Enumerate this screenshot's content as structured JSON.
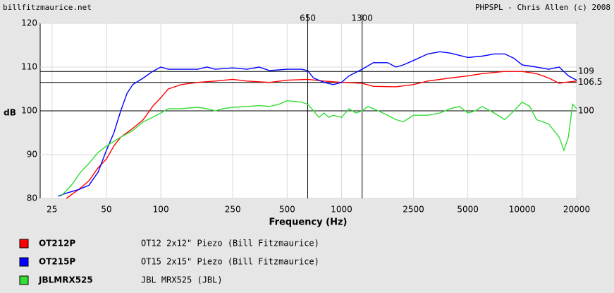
{
  "chart_data": {
    "type": "line",
    "site": "billfitzmaurice.net",
    "credit": "PHPSPL - Chris Allen (c) 2008",
    "xlabel": "Frequency (Hz)",
    "ylabel": "dB",
    "log_x": true,
    "grid": true,
    "xlim": [
      21.5,
      20000
    ],
    "ylim": [
      80,
      120
    ],
    "xticks": [
      25,
      50,
      100,
      250,
      500,
      1000,
      2500,
      5000,
      10000,
      20000
    ],
    "yticks": [
      80,
      90,
      100,
      110,
      120
    ],
    "vlines": [
      650,
      1300
    ],
    "hlines": [
      109,
      106.5,
      100
    ],
    "series": [
      {
        "name": "OT212P",
        "description": "OT12 2x12\" Piezo (Bill Fitzmaurice)",
        "color": "#ff0000",
        "x": [
          30,
          35,
          40,
          45,
          50,
          55,
          60,
          70,
          80,
          90,
          100,
          110,
          130,
          160,
          200,
          250,
          300,
          400,
          500,
          650,
          800,
          1000,
          1300,
          1500,
          2000,
          2500,
          3000,
          4000,
          5000,
          6000,
          8000,
          10000,
          12000,
          14000,
          16000,
          18000,
          20000
        ],
        "values": [
          80,
          82,
          84,
          87,
          89,
          92,
          94,
          96,
          98,
          101,
          103,
          105,
          106,
          106.5,
          106.8,
          107.2,
          106.8,
          106.5,
          107,
          107.2,
          106.8,
          106.5,
          106.3,
          105.6,
          105.5,
          106,
          106.8,
          107.5,
          108,
          108.5,
          109,
          109,
          108.5,
          107.5,
          106.3,
          106.6,
          106.8
        ]
      },
      {
        "name": "OT215P",
        "description": "OT15 2x15\" Piezo (Bill Fitzmaurice)",
        "color": "#0000ff",
        "x": [
          27,
          30,
          35,
          40,
          45,
          50,
          55,
          60,
          65,
          70,
          80,
          90,
          100,
          110,
          130,
          160,
          180,
          200,
          250,
          300,
          350,
          400,
          500,
          600,
          650,
          700,
          800,
          900,
          1000,
          1100,
          1300,
          1500,
          1800,
          2000,
          2200,
          2500,
          3000,
          3500,
          4000,
          5000,
          6000,
          7000,
          8000,
          9000,
          10000,
          12000,
          14000,
          16000,
          18000,
          20000
        ],
        "values": [
          80.5,
          81.2,
          82,
          83,
          86,
          91,
          95,
          100,
          104,
          106,
          107.5,
          109,
          110,
          109.5,
          109.5,
          109.5,
          110,
          109.5,
          109.8,
          109.5,
          110,
          109.2,
          109.5,
          109.5,
          109.2,
          107.5,
          106.5,
          106,
          106.5,
          108,
          109.5,
          111,
          111,
          110,
          110.5,
          111.5,
          113,
          113.5,
          113.2,
          112.2,
          112.5,
          113,
          113,
          112,
          110.5,
          110,
          109.5,
          110,
          108,
          107
        ]
      },
      {
        "name": "JBLMRX525",
        "description": "JBL MRX525 (JBL)",
        "color": "#33dd33",
        "x": [
          28,
          32,
          36,
          40,
          45,
          50,
          55,
          60,
          70,
          80,
          90,
          100,
          110,
          130,
          160,
          180,
          200,
          220,
          250,
          300,
          350,
          400,
          450,
          500,
          600,
          650,
          700,
          750,
          800,
          850,
          900,
          1000,
          1100,
          1200,
          1300,
          1400,
          1600,
          1800,
          2000,
          2200,
          2500,
          3000,
          3500,
          4000,
          4500,
          5000,
          5500,
          6000,
          7000,
          8000,
          9000,
          10000,
          11000,
          12000,
          14000,
          16000,
          17000,
          18000,
          19000,
          20000
        ],
        "values": [
          80.5,
          83,
          86,
          88,
          90.5,
          92,
          93,
          94,
          95.5,
          97.5,
          98.5,
          99.5,
          100.5,
          100.5,
          100.8,
          100.5,
          100,
          100.5,
          100.8,
          101,
          101.2,
          101,
          101.5,
          102.3,
          102,
          101.5,
          100,
          98.5,
          99.5,
          98.5,
          99,
          98.5,
          100.5,
          99.5,
          100,
          101,
          100,
          99,
          98,
          97.5,
          99,
          99,
          99.5,
          100.5,
          101,
          99.5,
          100,
          101,
          99.5,
          98,
          100,
          102,
          101,
          98,
          97,
          94,
          91,
          94,
          101.5,
          100.5
        ]
      }
    ]
  }
}
